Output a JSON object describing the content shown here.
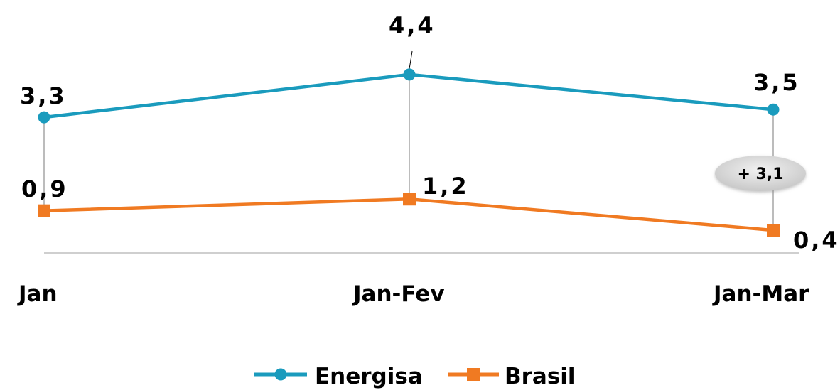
{
  "chart_data": {
    "type": "line",
    "categories": [
      "Jan",
      "Jan-Fev",
      "Jan-Mar"
    ],
    "series": [
      {
        "name": "Energisa",
        "values": [
          3.3,
          4.4,
          3.5
        ],
        "labels": [
          "3,3",
          "4,4",
          "3,5"
        ],
        "color": "#1a9bbd",
        "marker": "circle"
      },
      {
        "name": "Brasil",
        "values": [
          0.9,
          1.2,
          0.4
        ],
        "labels": [
          "0,9",
          "1,2",
          "0,4"
        ],
        "color": "#f07a22",
        "marker": "square"
      }
    ],
    "annotation": {
      "text": "+ 3,1",
      "category": "Jan-Mar"
    },
    "legend": "bottom",
    "grid": false
  }
}
